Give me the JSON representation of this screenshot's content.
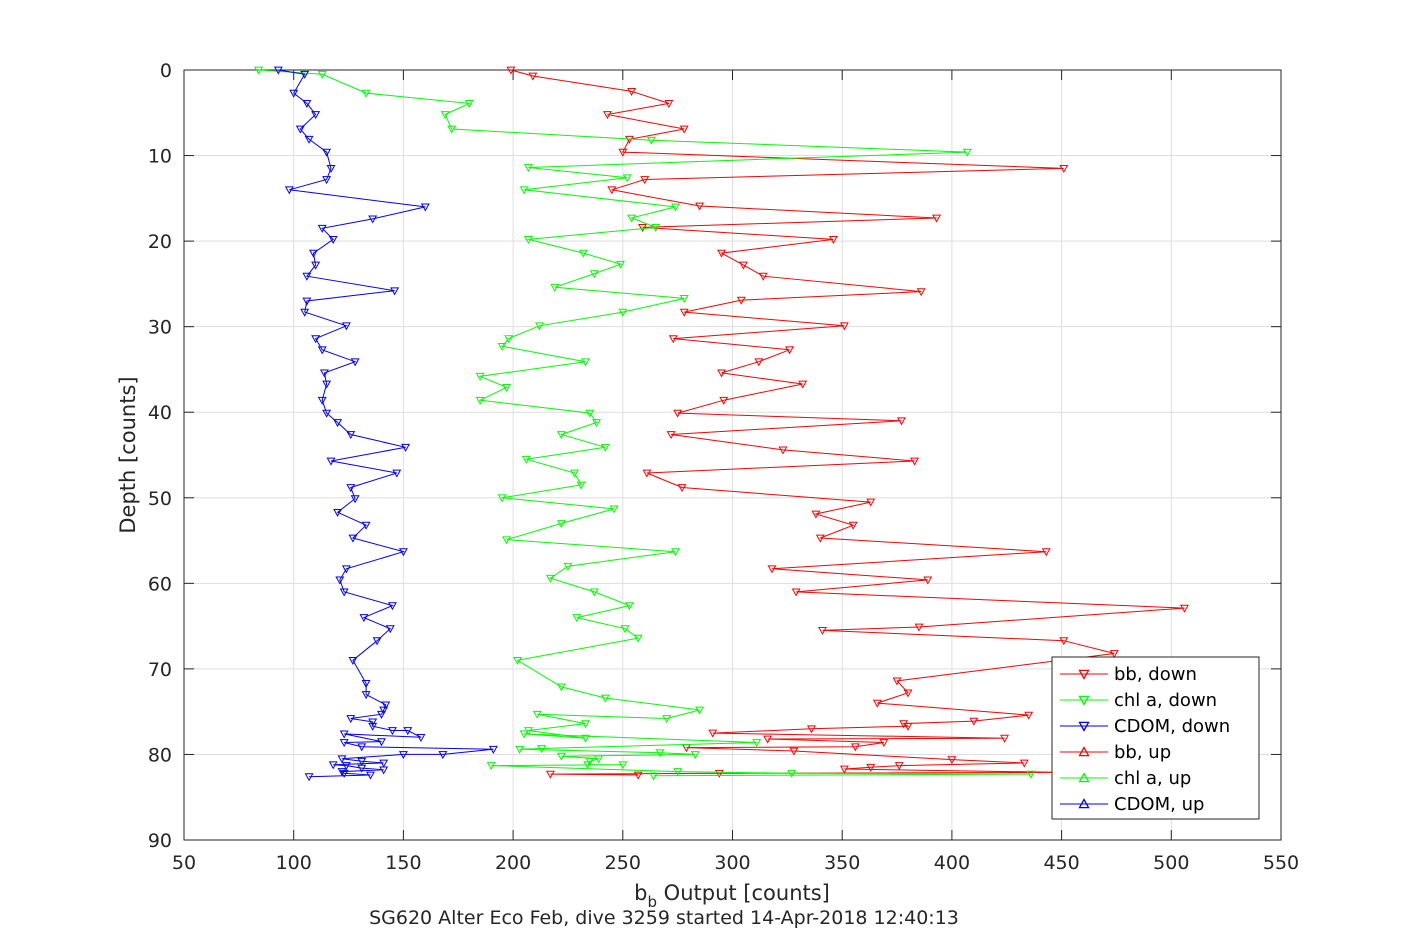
{
  "chart_data": {
    "type": "line",
    "xlabel_main": "b",
    "xlabel_sub": "b",
    "xlabel_rest": " Output [counts]",
    "ylabel": "Depth [counts]",
    "subtitle": "SG620 Alter Eco Feb, dive 3259 started 14-Apr-2018 12:40:13",
    "xlim": [
      50,
      550
    ],
    "ylim": [
      0,
      90
    ],
    "y_reversed": true,
    "grid": true,
    "legend_position": "bottom-right",
    "xticks": [
      "50",
      "100",
      "150",
      "200",
      "250",
      "300",
      "350",
      "400",
      "450",
      "500",
      "550"
    ],
    "yticks": [
      "0",
      "10",
      "20",
      "30",
      "40",
      "50",
      "60",
      "70",
      "80",
      "90"
    ],
    "series": [
      {
        "name": "bb, down",
        "color": "#ff0000",
        "marker": "triangle-down",
        "points": [
          [
            199,
            0
          ],
          [
            209,
            0.7
          ],
          [
            254,
            2.5
          ],
          [
            271,
            3.9
          ],
          [
            243,
            5.2
          ],
          [
            278,
            6.9
          ],
          [
            253,
            8.1
          ],
          [
            250,
            9.6
          ],
          [
            451,
            11.5
          ],
          [
            260,
            12.8
          ],
          [
            245,
            14.0
          ],
          [
            285,
            15.9
          ],
          [
            393,
            17.3
          ],
          [
            259,
            18.4
          ],
          [
            346,
            19.8
          ],
          [
            295,
            21.4
          ],
          [
            305,
            22.8
          ],
          [
            314,
            24.1
          ],
          [
            386,
            25.9
          ],
          [
            304,
            26.9
          ],
          [
            278,
            28.3
          ],
          [
            351,
            29.9
          ],
          [
            273,
            31.4
          ],
          [
            326,
            32.7
          ],
          [
            312,
            34.1
          ],
          [
            295,
            35.4
          ],
          [
            332,
            36.7
          ],
          [
            296,
            38.6
          ],
          [
            275,
            40.1
          ],
          [
            377,
            41.0
          ],
          [
            272,
            42.6
          ],
          [
            323,
            44.4
          ],
          [
            383,
            45.7
          ],
          [
            261,
            47.1
          ],
          [
            277,
            48.8
          ],
          [
            363,
            50.5
          ],
          [
            338,
            51.9
          ],
          [
            355,
            53.2
          ],
          [
            340,
            54.7
          ],
          [
            443,
            56.3
          ],
          [
            318,
            58.3
          ],
          [
            389,
            59.6
          ],
          [
            329,
            61.0
          ],
          [
            506,
            62.9
          ],
          [
            385,
            65.1
          ],
          [
            341,
            65.5
          ],
          [
            451,
            66.7
          ],
          [
            474,
            68.2
          ],
          [
            375,
            71.4
          ],
          [
            380,
            72.8
          ],
          [
            366,
            74.0
          ],
          [
            435,
            75.4
          ],
          [
            410,
            76.1
          ],
          [
            378,
            76.4
          ],
          [
            380,
            76.7
          ],
          [
            336,
            77.0
          ],
          [
            291,
            77.5
          ],
          [
            424,
            78.1
          ],
          [
            316,
            78.2
          ],
          [
            369,
            78.6
          ],
          [
            356,
            79.1
          ],
          [
            279,
            79.2
          ],
          [
            328,
            79.6
          ],
          [
            400,
            80.6
          ],
          [
            433,
            81.0
          ],
          [
            376,
            81.3
          ],
          [
            363,
            81.5
          ],
          [
            351,
            81.7
          ],
          [
            450,
            82.1
          ],
          [
            294,
            82.2
          ],
          [
            217,
            82.3
          ],
          [
            257,
            82.4
          ]
        ]
      },
      {
        "name": "chl a, down",
        "color": "#00ff00",
        "marker": "triangle-down",
        "points": [
          [
            84,
            0
          ],
          [
            113,
            0.5
          ],
          [
            133,
            2.7
          ],
          [
            180,
            3.9
          ],
          [
            169,
            5.2
          ],
          [
            172,
            6.9
          ],
          [
            263,
            8.2
          ],
          [
            407,
            9.6
          ],
          [
            207,
            11.4
          ],
          [
            252,
            12.6
          ],
          [
            205,
            14.0
          ],
          [
            274,
            16.0
          ],
          [
            254,
            17.3
          ],
          [
            265,
            18.4
          ],
          [
            207,
            19.8
          ],
          [
            232,
            21.4
          ],
          [
            249,
            22.7
          ],
          [
            237,
            23.8
          ],
          [
            219,
            25.4
          ],
          [
            278,
            26.7
          ],
          [
            250,
            28.3
          ],
          [
            212,
            29.9
          ],
          [
            198,
            31.4
          ],
          [
            195,
            32.3
          ],
          [
            233,
            34.1
          ],
          [
            185,
            35.8
          ],
          [
            197,
            37.1
          ],
          [
            185,
            38.6
          ],
          [
            235,
            40.1
          ],
          [
            238,
            41.2
          ],
          [
            222,
            42.6
          ],
          [
            242,
            44.1
          ],
          [
            206,
            45.5
          ],
          [
            228,
            47.1
          ],
          [
            231,
            48.5
          ],
          [
            195,
            50.0
          ],
          [
            246,
            51.3
          ],
          [
            222,
            53.0
          ],
          [
            197,
            54.9
          ],
          [
            274,
            56.3
          ],
          [
            225,
            58.0
          ],
          [
            217,
            59.4
          ],
          [
            237,
            61.0
          ],
          [
            253,
            62.6
          ],
          [
            229,
            64.0
          ],
          [
            251,
            65.3
          ],
          [
            257,
            66.4
          ],
          [
            202,
            69.0
          ],
          [
            222,
            72.1
          ],
          [
            242,
            73.4
          ],
          [
            285,
            74.8
          ],
          [
            270,
            75.8
          ],
          [
            211,
            75.3
          ],
          [
            233,
            76.4
          ],
          [
            207,
            77.2
          ],
          [
            233,
            78.1
          ],
          [
            205,
            77.6
          ],
          [
            311,
            78.6
          ],
          [
            213,
            79.3
          ],
          [
            203,
            79.4
          ],
          [
            267,
            79.8
          ],
          [
            283,
            80.0
          ],
          [
            222,
            80.2
          ],
          [
            239,
            80.5
          ],
          [
            235,
            80.8
          ],
          [
            234,
            81.2
          ],
          [
            250,
            81.2
          ],
          [
            190,
            81.3
          ],
          [
            275,
            82.0
          ],
          [
            327,
            82.2
          ],
          [
            436,
            82.3
          ],
          [
            264,
            82.5
          ]
        ]
      },
      {
        "name": "CDOM, down",
        "color": "#0000ff",
        "marker": "triangle-down",
        "points": [
          [
            93,
            0
          ],
          [
            105,
            0.5
          ],
          [
            100,
            2.7
          ],
          [
            106,
            3.9
          ],
          [
            110,
            5.2
          ],
          [
            103,
            6.9
          ],
          [
            107,
            8.1
          ],
          [
            115,
            9.6
          ],
          [
            117,
            11.5
          ],
          [
            115,
            12.8
          ],
          [
            98,
            14.0
          ],
          [
            160,
            16.0
          ],
          [
            136,
            17.4
          ],
          [
            113,
            18.5
          ],
          [
            118,
            19.8
          ],
          [
            109,
            21.4
          ],
          [
            110,
            22.8
          ],
          [
            106,
            24.1
          ],
          [
            146,
            25.8
          ],
          [
            106,
            27.0
          ],
          [
            105,
            28.3
          ],
          [
            124,
            29.9
          ],
          [
            110,
            31.4
          ],
          [
            113,
            32.7
          ],
          [
            128,
            34.1
          ],
          [
            114,
            35.4
          ],
          [
            115,
            36.7
          ],
          [
            113,
            38.6
          ],
          [
            115,
            40.1
          ],
          [
            120,
            41.2
          ],
          [
            126,
            42.6
          ],
          [
            151,
            44.1
          ],
          [
            117,
            45.7
          ],
          [
            147,
            47.1
          ],
          [
            126,
            48.8
          ],
          [
            128,
            50.1
          ],
          [
            120,
            51.7
          ],
          [
            133,
            53.2
          ],
          [
            127,
            54.7
          ],
          [
            150,
            56.3
          ],
          [
            124,
            58.3
          ],
          [
            121,
            59.6
          ],
          [
            123,
            61.0
          ],
          [
            145,
            62.6
          ],
          [
            132,
            64.0
          ],
          [
            144,
            65.3
          ],
          [
            138,
            66.7
          ],
          [
            127,
            69.0
          ],
          [
            133,
            71.7
          ],
          [
            133,
            73.0
          ],
          [
            142,
            74.2
          ],
          [
            141,
            74.8
          ],
          [
            140,
            75.3
          ],
          [
            126,
            75.8
          ],
          [
            136,
            76.2
          ],
          [
            136,
            76.7
          ],
          [
            145,
            77.2
          ],
          [
            152,
            77.2
          ],
          [
            158,
            78.0
          ],
          [
            123,
            77.6
          ],
          [
            140,
            78.5
          ],
          [
            123,
            78.6
          ],
          [
            131,
            79.1
          ],
          [
            191,
            79.4
          ],
          [
            168,
            80.0
          ],
          [
            150,
            80.0
          ],
          [
            122,
            80.5
          ],
          [
            131,
            80.8
          ],
          [
            141,
            81.0
          ],
          [
            118,
            81.2
          ],
          [
            124,
            81.3
          ],
          [
            131,
            81.6
          ],
          [
            141,
            81.8
          ],
          [
            122,
            82.0
          ],
          [
            123,
            82.2
          ],
          [
            135,
            82.4
          ],
          [
            107,
            82.6
          ]
        ]
      },
      {
        "name": "bb, up",
        "color": "#ff0000",
        "marker": "triangle-up",
        "points": []
      },
      {
        "name": "chl a, up",
        "color": "#00ff00",
        "marker": "triangle-up",
        "points": []
      },
      {
        "name": "CDOM, up",
        "color": "#0000ff",
        "marker": "triangle-up",
        "points": []
      }
    ]
  }
}
